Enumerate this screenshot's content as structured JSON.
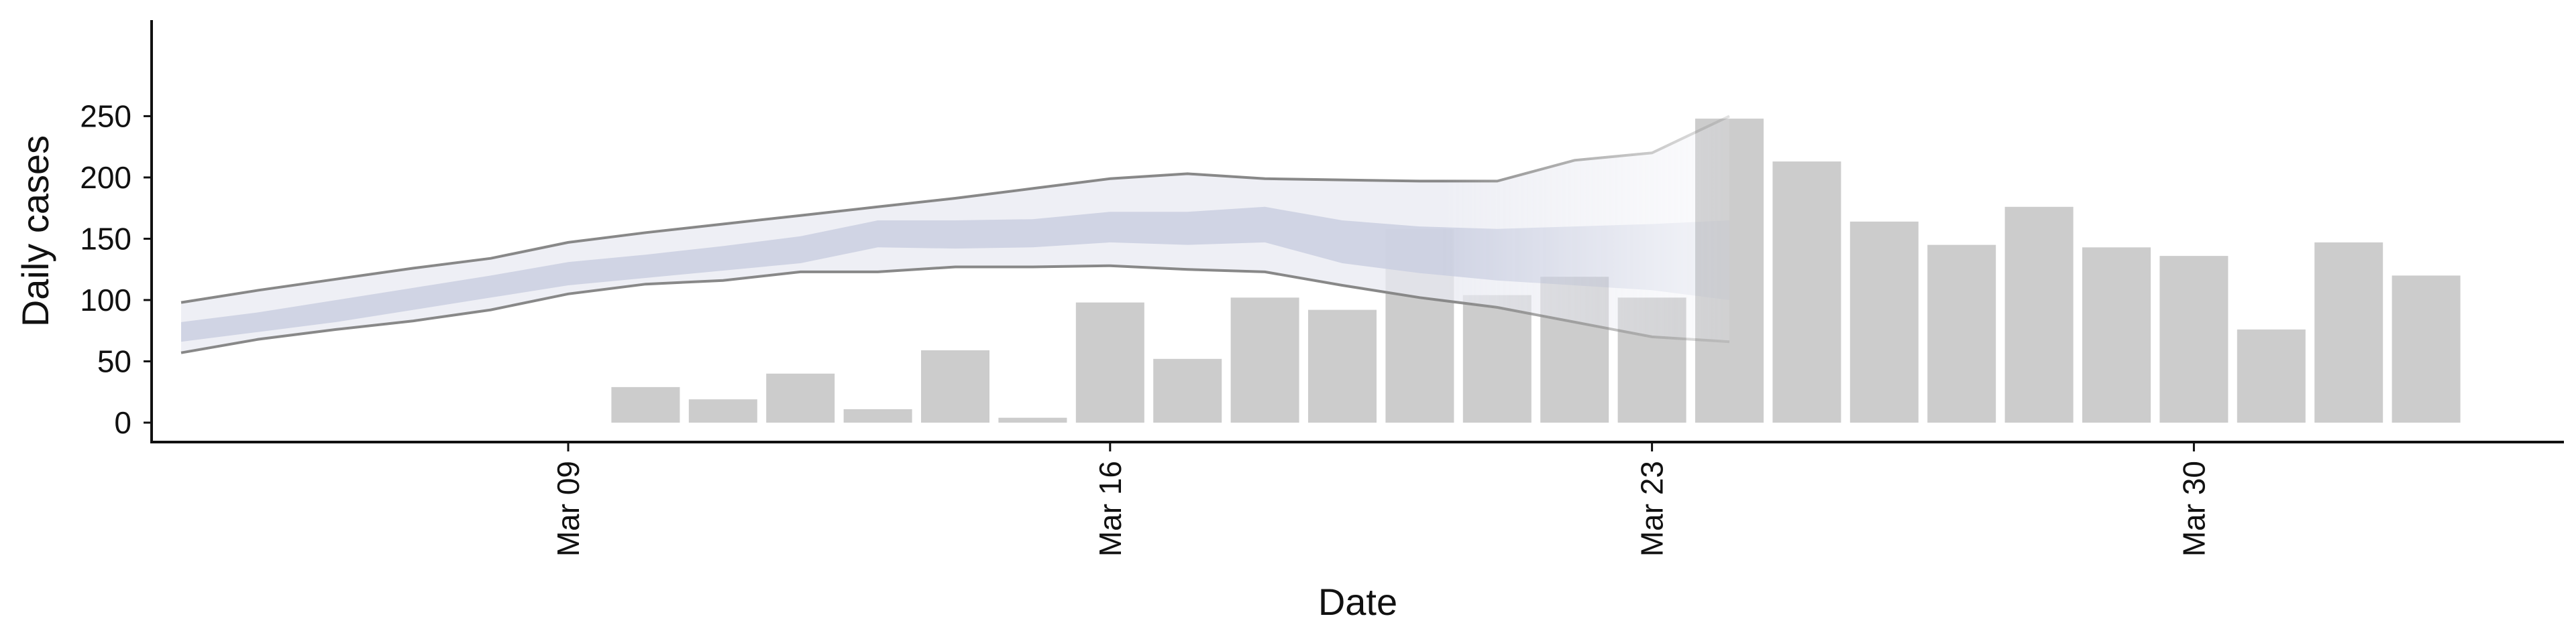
{
  "chart_data": {
    "type": "bar",
    "title": "",
    "xlabel": "Date",
    "ylabel": "Daily cases",
    "ylim": [
      0,
      260
    ],
    "y_ticks": [
      0,
      50,
      100,
      150,
      200,
      250
    ],
    "x_ticks": [
      {
        "date": "2020-03-09",
        "label": "Mar 09"
      },
      {
        "date": "2020-03-16",
        "label": "Mar 16"
      },
      {
        "date": "2020-03-23",
        "label": "Mar 23"
      },
      {
        "date": "2020-03-30",
        "label": "Mar 30"
      }
    ],
    "grid": false,
    "legend": "none",
    "colors": {
      "bars": "#cccccc",
      "band_outer_fill": "#e8eaf2",
      "band_inner_fill": "#c8cde0",
      "band_outline": "#888888",
      "axis": "#111111"
    },
    "bars": [
      {
        "date": "2020-03-10",
        "value": 29
      },
      {
        "date": "2020-03-11",
        "value": 19
      },
      {
        "date": "2020-03-12",
        "value": 40
      },
      {
        "date": "2020-03-13",
        "value": 11
      },
      {
        "date": "2020-03-14",
        "value": 59
      },
      {
        "date": "2020-03-15",
        "value": 4
      },
      {
        "date": "2020-03-16",
        "value": 98
      },
      {
        "date": "2020-03-17",
        "value": 52
      },
      {
        "date": "2020-03-18",
        "value": 102
      },
      {
        "date": "2020-03-19",
        "value": 92
      },
      {
        "date": "2020-03-20",
        "value": 158
      },
      {
        "date": "2020-03-21",
        "value": 104
      },
      {
        "date": "2020-03-22",
        "value": 119
      },
      {
        "date": "2020-03-23",
        "value": 102
      },
      {
        "date": "2020-03-24",
        "value": 248
      },
      {
        "date": "2020-03-25",
        "value": 213
      },
      {
        "date": "2020-03-26",
        "value": 164
      },
      {
        "date": "2020-03-27",
        "value": 145
      },
      {
        "date": "2020-03-28",
        "value": 176
      },
      {
        "date": "2020-03-29",
        "value": 143
      },
      {
        "date": "2020-03-30",
        "value": 136
      },
      {
        "date": "2020-03-31",
        "value": 76
      },
      {
        "date": "2020-04-01",
        "value": 147
      },
      {
        "date": "2020-04-02",
        "value": 120
      }
    ],
    "bands": {
      "dates": [
        "2020-03-04",
        "2020-03-05",
        "2020-03-06",
        "2020-03-07",
        "2020-03-08",
        "2020-03-09",
        "2020-03-10",
        "2020-03-11",
        "2020-03-12",
        "2020-03-13",
        "2020-03-14",
        "2020-03-15",
        "2020-03-16",
        "2020-03-17",
        "2020-03-18",
        "2020-03-19",
        "2020-03-20",
        "2020-03-21",
        "2020-03-22",
        "2020-03-23",
        "2020-03-24"
      ],
      "outer_upper": [
        98,
        108,
        117,
        126,
        134,
        147,
        155,
        162,
        169,
        176,
        183,
        191,
        199,
        203,
        199,
        198,
        197,
        197,
        214,
        220,
        250
      ],
      "outer_lower": [
        57,
        68,
        76,
        83,
        92,
        105,
        113,
        116,
        123,
        123,
        127,
        127,
        128,
        125,
        123,
        112,
        102,
        94,
        82,
        70,
        66
      ],
      "inner_upper": [
        82,
        90,
        100,
        110,
        120,
        131,
        137,
        144,
        152,
        165,
        165,
        166,
        172,
        172,
        176,
        165,
        160,
        158,
        160,
        162,
        165
      ],
      "inner_lower": [
        66,
        74,
        82,
        92,
        102,
        112,
        118,
        124,
        130,
        143,
        142,
        143,
        147,
        145,
        147,
        130,
        122,
        116,
        112,
        108,
        100
      ]
    }
  }
}
